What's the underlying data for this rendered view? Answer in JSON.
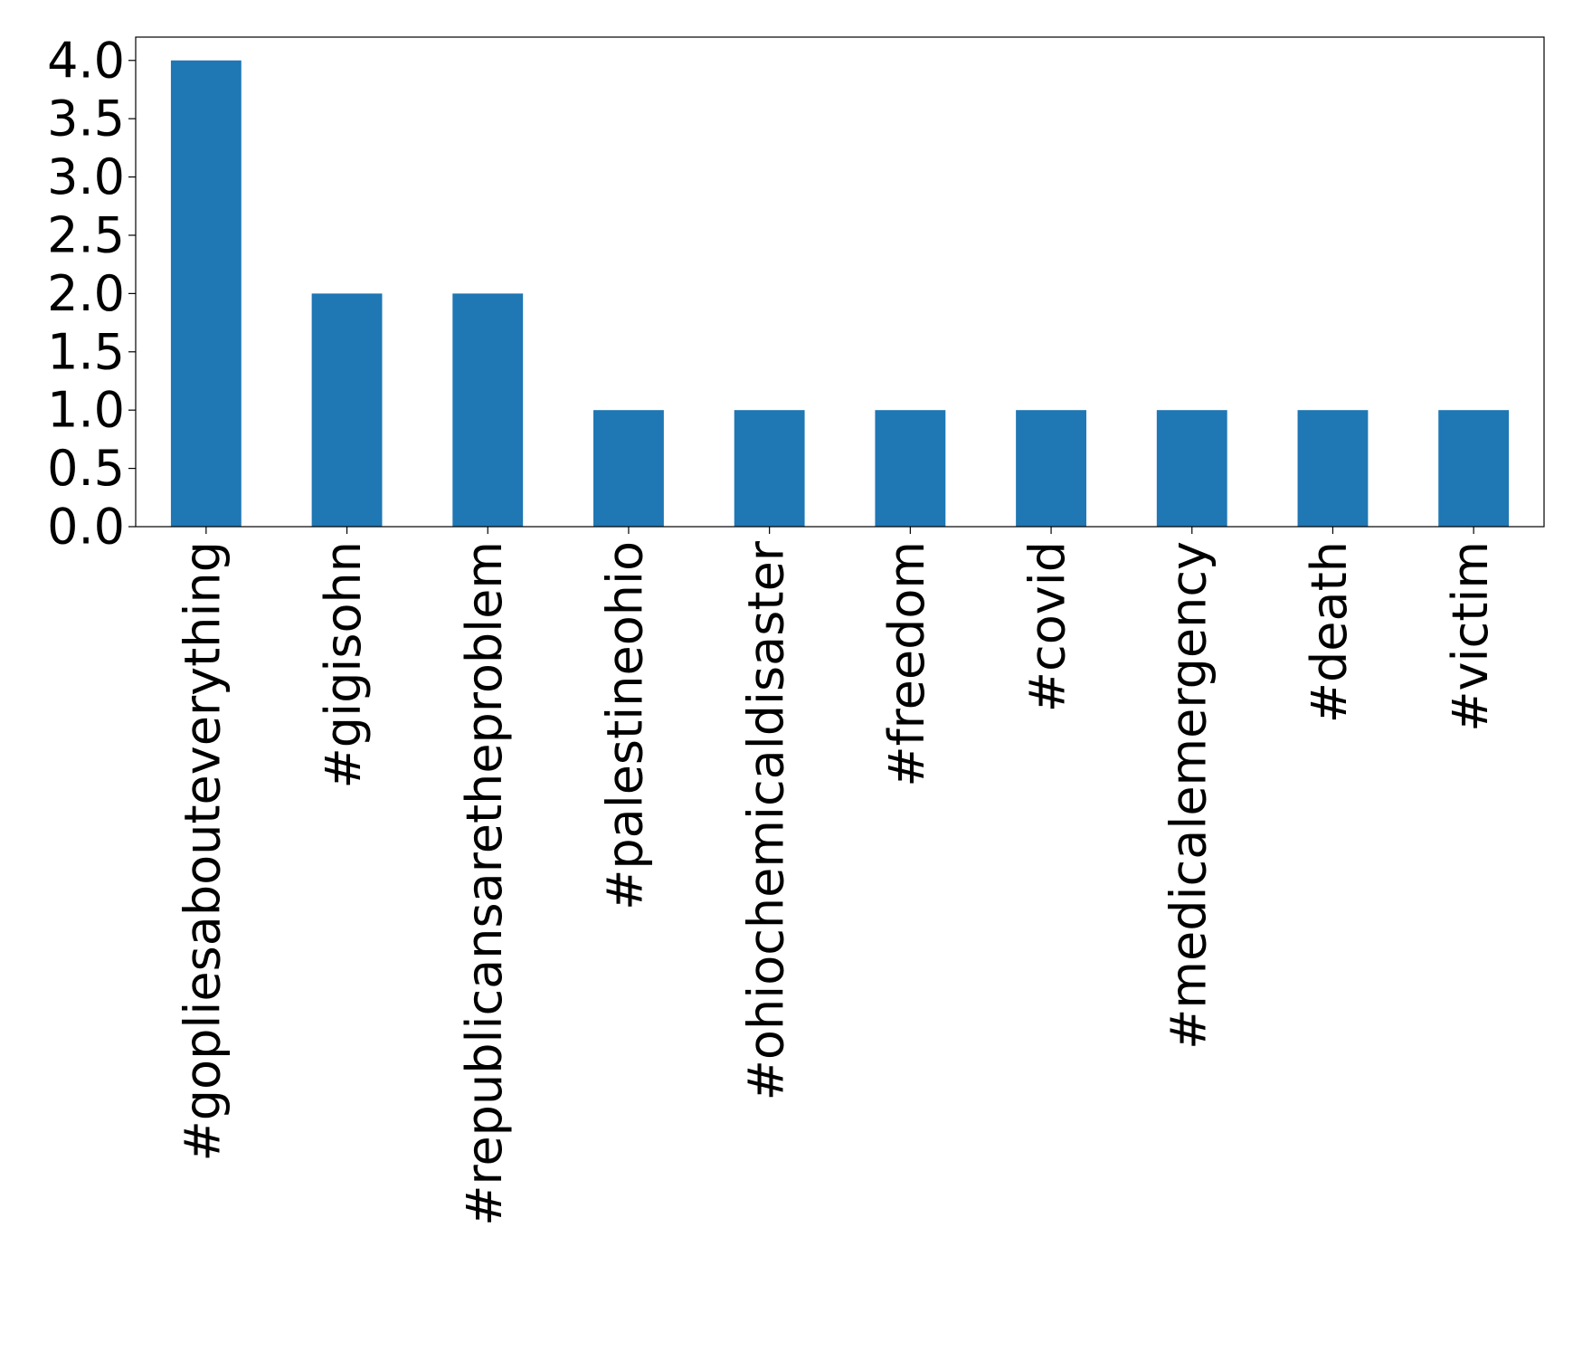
{
  "chart_data": {
    "type": "bar",
    "categories": [
      "#gopliesabouteverything",
      "#gigisohn",
      "#republicansaretheproblem",
      "#palestineohio",
      "#ohiochemicaldisaster",
      "#freedom",
      "#covid",
      "#medicalemergency",
      "#death",
      "#victim"
    ],
    "values": [
      4,
      2,
      2,
      1,
      1,
      1,
      1,
      1,
      1,
      1
    ],
    "title": "",
    "xlabel": "",
    "ylabel": "",
    "ylim": [
      0,
      4.2
    ],
    "yticks": [
      "0.0",
      "0.5",
      "1.0",
      "1.5",
      "2.0",
      "2.5",
      "3.0",
      "3.5",
      "4.0"
    ],
    "bar_color": "#1f77b4",
    "grid": false,
    "legend": "none"
  }
}
